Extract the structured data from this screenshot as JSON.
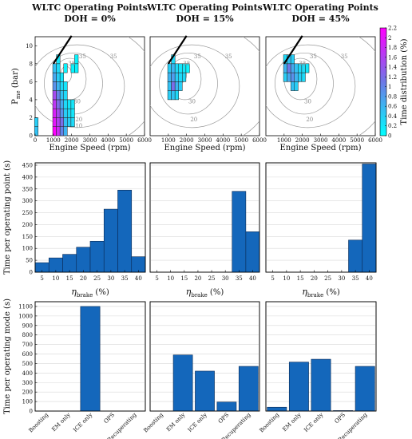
{
  "chart_data": [
    {
      "type": "heatmap",
      "title_line1": "WLTC Operating Points",
      "title_line2": "DOH = 0%",
      "xlabel": "Engine Speed (rpm)",
      "ylabel": "P",
      "ylabel_sub": "me",
      "ylabel_unit": " (bar)",
      "xlim": [
        0,
        6000
      ],
      "ylim": [
        0,
        11
      ],
      "xticks": [
        "0",
        "1000",
        "2000",
        "3000",
        "4000",
        "5000",
        "6000"
      ],
      "yticks": [
        "0",
        "2",
        "4",
        "6",
        "8",
        "10"
      ],
      "contour_labels": [
        "10",
        "20",
        "30",
        "35",
        "38"
      ],
      "cells": [
        [
          0,
          0,
          0.5
        ],
        [
          0,
          1,
          0.4
        ],
        [
          1000,
          0,
          2.2
        ],
        [
          1000,
          1,
          2.0
        ],
        [
          1000,
          2,
          1.9
        ],
        [
          1000,
          3,
          1.7
        ],
        [
          1000,
          4,
          1.5
        ],
        [
          1000,
          5,
          0.9
        ],
        [
          1000,
          6,
          0.7
        ],
        [
          1000,
          7,
          0.5
        ],
        [
          1200,
          0,
          1.8
        ],
        [
          1200,
          1,
          1.6
        ],
        [
          1200,
          2,
          1.5
        ],
        [
          1200,
          3,
          1.2
        ],
        [
          1200,
          4,
          1.0
        ],
        [
          1200,
          5,
          0.6
        ],
        [
          1200,
          6,
          0.4
        ],
        [
          1200,
          7,
          0.3
        ],
        [
          1400,
          0,
          1.0
        ],
        [
          1400,
          1,
          1.2
        ],
        [
          1400,
          2,
          0.9
        ],
        [
          1400,
          3,
          0.7
        ],
        [
          1400,
          4,
          0.5
        ],
        [
          1400,
          5,
          0.3
        ],
        [
          1400,
          6,
          0.2
        ],
        [
          1600,
          0,
          0.6
        ],
        [
          1600,
          1,
          0.5
        ],
        [
          1600,
          2,
          0.4
        ],
        [
          1600,
          3,
          0.3
        ],
        [
          1600,
          4,
          0.3
        ],
        [
          1600,
          5,
          0.2
        ],
        [
          1800,
          1,
          0.4
        ],
        [
          1800,
          2,
          0.3
        ],
        [
          1800,
          3,
          0.2
        ],
        [
          2000,
          1,
          0.3
        ],
        [
          2000,
          2,
          0.2
        ],
        [
          2000,
          3,
          0.2
        ],
        [
          1200,
          8,
          0.2
        ],
        [
          1600,
          7,
          0.1
        ],
        [
          2000,
          7,
          0.1
        ],
        [
          2200,
          7,
          0.1
        ],
        [
          2200,
          8,
          0.1
        ]
      ],
      "colorbar": {
        "label": "Time distribution (%)",
        "ticks": [
          "0",
          "0.2",
          "0.4",
          "0.6",
          "0.8",
          "1",
          "1.2",
          "1.4",
          "1.6",
          "1.8",
          "2",
          "2.2"
        ],
        "range": [
          0,
          2.2
        ]
      }
    },
    {
      "type": "heatmap",
      "title_line1": "WLTC Operating Points",
      "title_line2": "DOH = 15%",
      "xlabel": "Engine Speed (rpm)",
      "xlim": [
        0,
        6000
      ],
      "ylim": [
        0,
        11
      ],
      "xticks": [
        "1000",
        "2000",
        "3000",
        "4000",
        "5000",
        "6000"
      ],
      "contour_labels": [
        "20",
        "30",
        "35",
        "38"
      ],
      "cells": [
        [
          1000,
          4,
          0.4
        ],
        [
          1000,
          5,
          0.5
        ],
        [
          1000,
          6,
          0.6
        ],
        [
          1000,
          7,
          0.4
        ],
        [
          1200,
          4,
          0.5
        ],
        [
          1200,
          5,
          1.2
        ],
        [
          1200,
          6,
          0.8
        ],
        [
          1200,
          7,
          0.6
        ],
        [
          1200,
          8,
          0.3
        ],
        [
          1400,
          4,
          0.3
        ],
        [
          1400,
          5,
          0.6
        ],
        [
          1400,
          6,
          0.4
        ],
        [
          1400,
          7,
          0.3
        ],
        [
          1600,
          5,
          0.4
        ],
        [
          1600,
          6,
          0.3
        ],
        [
          1600,
          7,
          0.2
        ],
        [
          1800,
          6,
          0.3
        ],
        [
          1800,
          7,
          0.2
        ],
        [
          2000,
          7,
          0.1
        ]
      ]
    },
    {
      "type": "heatmap",
      "title_line1": "WLTC Operating Points",
      "title_line2": "DOH = 45%",
      "xlabel": "Engine Speed (rpm)",
      "xlim": [
        0,
        6000
      ],
      "ylim": [
        0,
        11
      ],
      "xticks": [
        "1000",
        "2000",
        "3000",
        "4000",
        "5000",
        "6000"
      ],
      "contour_labels": [
        "20",
        "30",
        "35",
        "38"
      ],
      "cells": [
        [
          1000,
          6,
          0.4
        ],
        [
          1000,
          7,
          0.6
        ],
        [
          1000,
          8,
          0.3
        ],
        [
          1200,
          6,
          0.7
        ],
        [
          1200,
          7,
          1.1
        ],
        [
          1200,
          8,
          0.5
        ],
        [
          1400,
          5,
          0.5
        ],
        [
          1400,
          6,
          0.9
        ],
        [
          1400,
          7,
          0.7
        ],
        [
          1400,
          8,
          0.4
        ],
        [
          1600,
          5,
          0.4
        ],
        [
          1600,
          6,
          0.6
        ],
        [
          1600,
          7,
          0.5
        ],
        [
          1800,
          6,
          0.4
        ],
        [
          1800,
          7,
          0.3
        ],
        [
          2000,
          6,
          0.3
        ],
        [
          2000,
          7,
          0.3
        ],
        [
          2200,
          7,
          0.2
        ]
      ]
    },
    {
      "type": "bar",
      "ylabel": "Time per operating point (s)",
      "xlabel": "η",
      "xlabel_sub": "brake",
      "xlabel_unit": " (%)",
      "categories": [
        "5",
        "10",
        "15",
        "20",
        "25",
        "30",
        "35",
        "40"
      ],
      "values": [
        40,
        60,
        75,
        105,
        130,
        265,
        345,
        65
      ],
      "ylim": [
        0,
        460
      ],
      "yticks": [
        "0",
        "50",
        "100",
        "150",
        "200",
        "250",
        "300",
        "350",
        "400",
        "450"
      ]
    },
    {
      "type": "bar",
      "xlabel": "η",
      "xlabel_sub": "brake",
      "xlabel_unit": " (%)",
      "categories": [
        "5",
        "10",
        "15",
        "20",
        "25",
        "30",
        "35",
        "40"
      ],
      "values": [
        0,
        0,
        0,
        0,
        0,
        0,
        340,
        170
      ],
      "ylim": [
        0,
        460
      ]
    },
    {
      "type": "bar",
      "xlabel": "η",
      "xlabel_sub": "brake",
      "xlabel_unit": " (%)",
      "categories": [
        "5",
        "10",
        "15",
        "20",
        "25",
        "30",
        "35",
        "40"
      ],
      "values": [
        0,
        0,
        0,
        0,
        0,
        0,
        135,
        455
      ],
      "ylim": [
        0,
        460
      ]
    },
    {
      "type": "bar",
      "ylabel": "Time per operating mode (s)",
      "categories": [
        "Boosting",
        "EM only",
        "ICE only",
        "OPS",
        "Recuperating"
      ],
      "values": [
        0,
        0,
        1100,
        0,
        0
      ],
      "ylim": [
        0,
        1150
      ],
      "yticks": [
        "0",
        "100",
        "200",
        "300",
        "400",
        "500",
        "600",
        "700",
        "800",
        "900",
        "1000",
        "1100"
      ]
    },
    {
      "type": "bar",
      "categories": [
        "Boosting",
        "EM only",
        "ICE only",
        "OPS",
        "Recuperating"
      ],
      "values": [
        0,
        590,
        420,
        95,
        470
      ],
      "ylim": [
        0,
        1150
      ]
    },
    {
      "type": "bar",
      "categories": [
        "Boosting",
        "EM only",
        "ICE only",
        "OPS",
        "Recuperating"
      ],
      "values": [
        40,
        515,
        545,
        5,
        470
      ],
      "ylim": [
        0,
        1150
      ]
    }
  ]
}
